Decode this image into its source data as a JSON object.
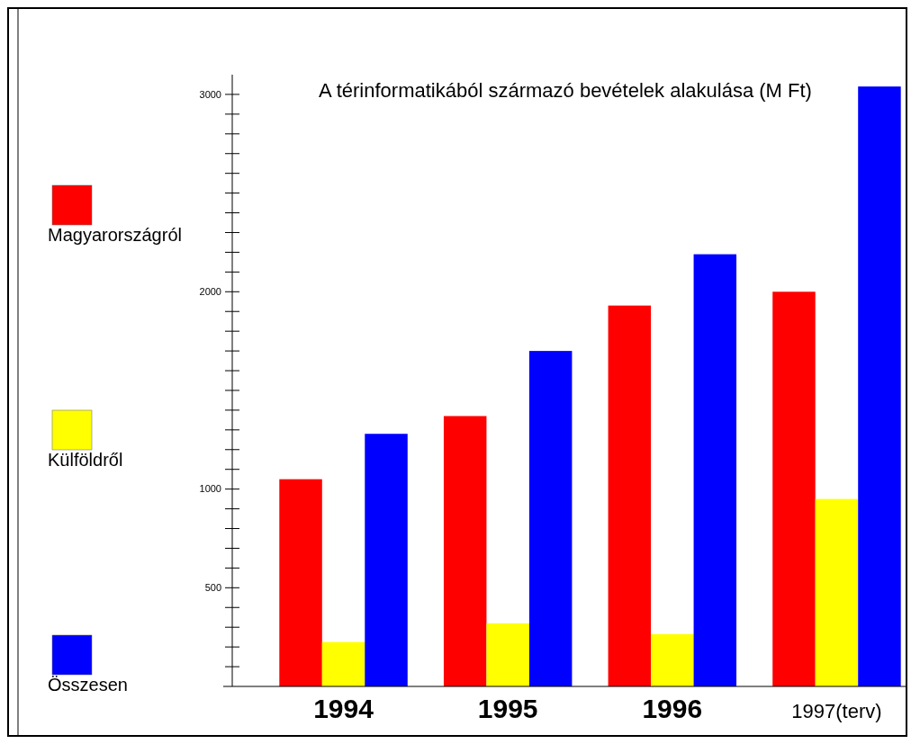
{
  "chart_data": {
    "type": "bar",
    "title": "A térinformatikából származó bevételek alakulása (M Ft)",
    "categories": [
      "1994",
      "1995",
      "1996",
      "1997(terv)"
    ],
    "series": [
      {
        "name": "Magyarországról",
        "color": "#ff0000",
        "values": [
          1050,
          1370,
          1930,
          2000
        ]
      },
      {
        "name": "Külföldről",
        "color": "#ffff00",
        "values": [
          225,
          320,
          265,
          950
        ]
      },
      {
        "name": "Összesen",
        "color": "#0000ff",
        "values": [
          1280,
          1700,
          2190,
          3040
        ]
      }
    ],
    "ylim": [
      0,
      3100
    ],
    "yticks": [
      {
        "value": 100,
        "label": null
      },
      {
        "value": 200,
        "label": null
      },
      {
        "value": 300,
        "label": null
      },
      {
        "value": 400,
        "label": null
      },
      500,
      {
        "value": 600,
        "label": null
      },
      {
        "value": 700,
        "label": null
      },
      {
        "value": 800,
        "label": null
      },
      {
        "value": 900,
        "label": null
      },
      1000,
      {
        "value": 1100,
        "label": null
      },
      {
        "value": 1200,
        "label": null
      },
      {
        "value": 1300,
        "label": null
      },
      {
        "value": 1400,
        "label": null
      },
      {
        "value": 1500,
        "label": null
      },
      {
        "value": 1600,
        "label": null
      },
      {
        "value": 1700,
        "label": null
      },
      {
        "value": 1800,
        "label": null
      },
      {
        "value": 1900,
        "label": null
      },
      2000,
      {
        "value": 2100,
        "label": null
      },
      {
        "value": 2200,
        "label": null
      },
      {
        "value": 2300,
        "label": null
      },
      {
        "value": 2400,
        "label": null
      },
      {
        "value": 2500,
        "label": null
      },
      {
        "value": 2600,
        "label": null
      },
      {
        "value": 2700,
        "label": null
      },
      {
        "value": 2800,
        "label": null
      },
      {
        "value": 2900,
        "label": null
      },
      3000
    ],
    "grid": false,
    "legend": "left"
  }
}
